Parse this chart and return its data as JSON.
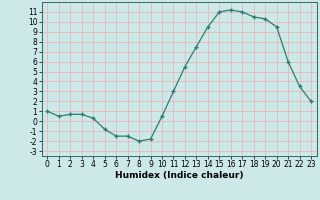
{
  "x": [
    0,
    1,
    2,
    3,
    4,
    5,
    6,
    7,
    8,
    9,
    10,
    11,
    12,
    13,
    14,
    15,
    16,
    17,
    18,
    19,
    20,
    21,
    22,
    23
  ],
  "y": [
    1.0,
    0.5,
    0.7,
    0.7,
    0.3,
    -0.8,
    -1.5,
    -1.5,
    -2.0,
    -1.8,
    0.5,
    3.0,
    5.5,
    7.5,
    9.5,
    11.0,
    11.2,
    11.0,
    10.5,
    10.3,
    9.5,
    6.0,
    3.5,
    2.0
  ],
  "xlabel": "Humidex (Indice chaleur)",
  "line_color": "#2e7d6e",
  "marker_color": "#2e7d6e",
  "bg_color": "#cce8e8",
  "grid_color": "#e8b8b8",
  "yticks": [
    -3,
    -2,
    -1,
    0,
    1,
    2,
    3,
    4,
    5,
    6,
    7,
    8,
    9,
    10,
    11
  ],
  "xticks": [
    0,
    1,
    2,
    3,
    4,
    5,
    6,
    7,
    8,
    9,
    10,
    11,
    12,
    13,
    14,
    15,
    16,
    17,
    18,
    19,
    20,
    21,
    22,
    23
  ],
  "ylim": [
    -3.5,
    12.0
  ],
  "xlim": [
    -0.5,
    23.5
  ],
  "tick_fontsize": 5.5,
  "xlabel_fontsize": 6.5
}
